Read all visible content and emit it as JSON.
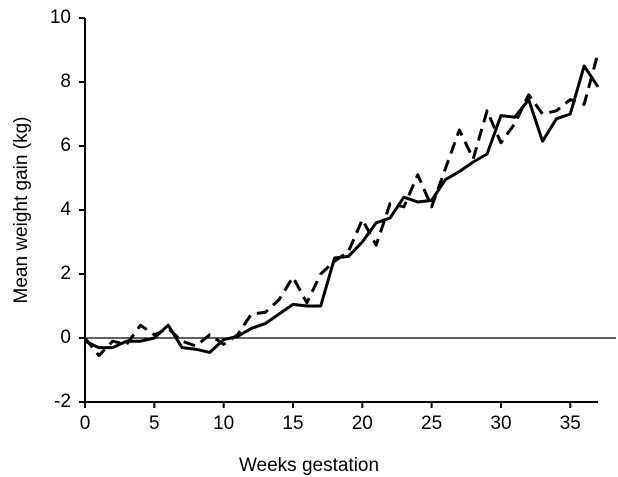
{
  "chart_data": {
    "type": "line",
    "xlabel": "Weeks gestation",
    "ylabel": "Mean weight gain (kg)",
    "x": [
      0,
      1,
      2,
      3,
      4,
      5,
      6,
      7,
      8,
      9,
      10,
      11,
      12,
      13,
      14,
      15,
      16,
      17,
      18,
      19,
      20,
      21,
      22,
      23,
      24,
      25,
      26,
      27,
      28,
      29,
      30,
      31,
      32,
      33,
      34,
      35,
      36,
      37
    ],
    "series": [
      {
        "color": "#000000",
        "dash": "solid",
        "values": [
          -0.1,
          -0.3,
          -0.3,
          -0.1,
          -0.1,
          0,
          0.4,
          -0.3,
          -0.35,
          -0.45,
          -0.05,
          0.05,
          0.3,
          0.45,
          0.75,
          1.05,
          1.0,
          1.0,
          2.5,
          2.55,
          3.0,
          3.6,
          3.75,
          4.4,
          4.25,
          4.3,
          4.95,
          5.2,
          5.5,
          5.75,
          6.95,
          6.9,
          7.45,
          6.15,
          6.85,
          7.0,
          8.5,
          7.85
        ]
      },
      {
        "color": "#000000",
        "dash": "dashed",
        "values": [
          0,
          -0.55,
          -0.1,
          -0.2,
          0.4,
          0.1,
          0.3,
          -0.1,
          -0.25,
          0.1,
          -0.2,
          0.1,
          0.75,
          0.8,
          1.2,
          1.9,
          1.1,
          2.0,
          2.4,
          2.7,
          3.7,
          2.9,
          4.2,
          4.1,
          5.1,
          4.1,
          5.3,
          6.5,
          5.6,
          7.1,
          6.1,
          6.7,
          7.6,
          7.0,
          7.1,
          7.45,
          7.3,
          8.9
        ]
      }
    ],
    "xlim": [
      0,
      37
    ],
    "xticks": [
      0,
      5,
      10,
      15,
      20,
      25,
      30,
      35
    ],
    "ylim": [
      -2,
      10
    ],
    "yticks": [
      -2,
      0,
      2,
      4,
      6,
      8,
      10
    ],
    "hline": 0
  }
}
